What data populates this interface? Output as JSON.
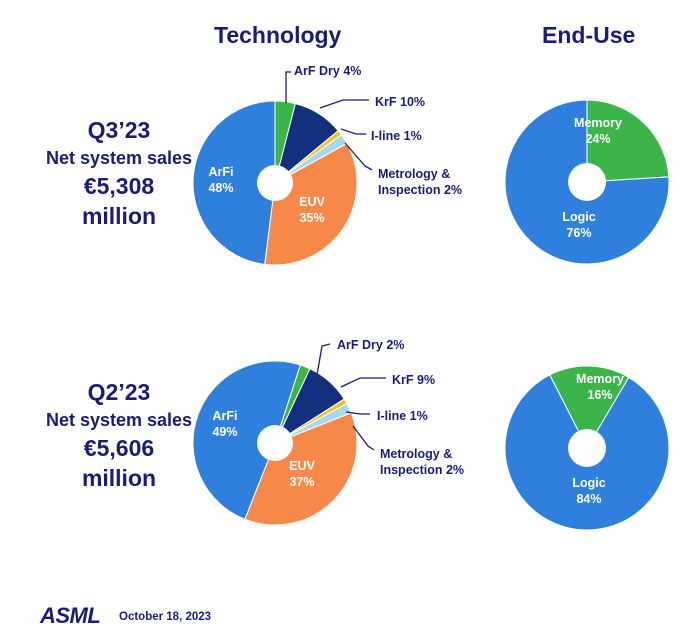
{
  "headers": {
    "technology": "Technology",
    "end_use": "End-Use"
  },
  "periods": [
    {
      "quarter": "Q3’23",
      "label": "Net system sales",
      "value": "€5,308 million"
    },
    {
      "quarter": "Q2’23",
      "label": "Net system sales",
      "value": "€5,606 million"
    }
  ],
  "footer": {
    "logo": "ASML",
    "date": "October 18, 2023"
  },
  "colors": {
    "navy": "#1b1c7a",
    "arfi": "#2f80dc",
    "euv": "#f6894a",
    "arf_dry": "#3bb44a",
    "krf": "#13307e",
    "iline": "#f2c41f",
    "metrology": "#a6d8ee",
    "logic": "#2f80dc",
    "memory": "#3bb44a"
  },
  "chart_data": [
    {
      "type": "pie",
      "title": "Technology",
      "period": "Q3’23",
      "slices": [
        {
          "name": "ArF Dry",
          "value": 4,
          "label": "ArF Dry 4%"
        },
        {
          "name": "KrF",
          "value": 10,
          "label": "KrF 10%"
        },
        {
          "name": "I-line",
          "value": 1,
          "label": "I-line 1%"
        },
        {
          "name": "Metrology & Inspection",
          "value": 2,
          "label": "Metrology &\nInspection 2%"
        },
        {
          "name": "EUV",
          "value": 35,
          "label": "EUV\n35%"
        },
        {
          "name": "ArFi",
          "value": 48,
          "label": "ArFi\n48%"
        }
      ]
    },
    {
      "type": "pie",
      "title": "End-Use",
      "period": "Q3’23",
      "slices": [
        {
          "name": "Memory",
          "value": 24,
          "label": "Memory\n24%"
        },
        {
          "name": "Logic",
          "value": 76,
          "label": "Logic\n76%"
        }
      ]
    },
    {
      "type": "pie",
      "title": "Technology",
      "period": "Q2’23",
      "slices": [
        {
          "name": "ArF Dry",
          "value": 2,
          "label": "ArF Dry 2%"
        },
        {
          "name": "KrF",
          "value": 9,
          "label": "KrF 9%"
        },
        {
          "name": "I-line",
          "value": 1,
          "label": "I-line 1%"
        },
        {
          "name": "Metrology & Inspection",
          "value": 2,
          "label": "Metrology &\nInspection 2%"
        },
        {
          "name": "EUV",
          "value": 37,
          "label": "EUV\n37%"
        },
        {
          "name": "ArFi",
          "value": 49,
          "label": "ArFi\n49%"
        }
      ]
    },
    {
      "type": "pie",
      "title": "End-Use",
      "period": "Q2’23",
      "slices": [
        {
          "name": "Memory",
          "value": 16,
          "label": "Memory\n16%"
        },
        {
          "name": "Logic",
          "value": 84,
          "label": "Logic\n84%"
        }
      ]
    }
  ]
}
